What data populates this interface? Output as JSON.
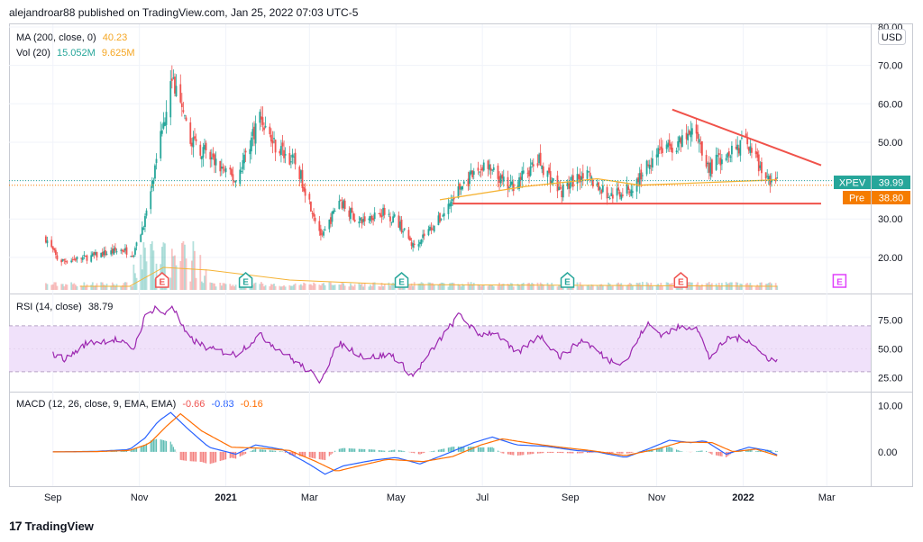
{
  "header": {
    "publisher": "alejandroar88 published on TradingView.com, Jan 25, 2022 07:03 UTC-5"
  },
  "footer": {
    "brand": "TradingView",
    "logo_icon": "tradingview-logo-icon"
  },
  "colors": {
    "up": "#26a69a",
    "down": "#ef5350",
    "ma": "#f5b335",
    "rsi": "#9c27b0",
    "rsi_band": "#f0e1fa",
    "macd": "#2962ff",
    "signal": "#ff6d00",
    "trendline": "#f0524a",
    "label_green": "#26a69a",
    "label_orange": "#f57c00"
  },
  "main_pane": {
    "legend": [
      {
        "label": "MA (200, close, 0)",
        "value": "40.23",
        "value2": "",
        "color": "#f5a623"
      },
      {
        "label": "Vol (20)",
        "value": "15.052M",
        "value2": "9.625M",
        "color": "#26a69a",
        "color2": "#f5a623"
      }
    ],
    "currency": "USD",
    "y_ticks": [
      "80.00",
      "70.00",
      "60.00",
      "50.00",
      "40.00",
      "30.00",
      "20.00"
    ],
    "symbol_label": "XPEV",
    "last_price": "39.99",
    "pre_label": "Pre",
    "pre_price": "38.80",
    "earnings_marker": "E"
  },
  "rsi_pane": {
    "legend": {
      "label": "RSI (14, close)",
      "value": "38.79",
      "color": "#9c27b0"
    },
    "y_ticks": [
      "75.00",
      "50.00",
      "25.00"
    ]
  },
  "macd_pane": {
    "legend": {
      "label": "MACD (12, 26, close, 9, EMA, EMA)",
      "v1": "-0.66",
      "v2": "-0.83",
      "v3": "-0.16"
    },
    "y_ticks": [
      "10.00",
      "0.00"
    ]
  },
  "x_axis": {
    "labels": [
      "Sep",
      "Nov",
      "2021",
      "Mar",
      "May",
      "Jul",
      "Sep",
      "Nov",
      "2022",
      "Mar"
    ]
  },
  "chart_data": [
    {
      "type": "candlestick",
      "title": "XPEV",
      "ylabel": "USD",
      "ylim": [
        12,
        80
      ],
      "x": [
        "2020-09",
        "2020-10",
        "2020-11",
        "2020-12",
        "2021-01",
        "2021-02",
        "2021-03",
        "2021-04",
        "2021-05",
        "2021-06",
        "2021-07",
        "2021-08",
        "2021-09",
        "2021-10",
        "2021-11",
        "2021-12",
        "2022-01"
      ],
      "close": [
        20,
        21,
        55,
        48,
        50,
        45,
        30,
        30,
        25,
        34,
        44,
        40,
        41,
        38,
        48,
        44,
        40
      ],
      "close_anchors": [
        [
          "2020-08-27",
          25
        ],
        [
          "2020-09-05",
          19
        ],
        [
          "2020-09-25",
          20
        ],
        [
          "2020-10-20",
          22
        ],
        [
          "2020-10-28",
          21
        ],
        [
          "2020-11-05",
          30
        ],
        [
          "2020-11-13",
          44
        ],
        [
          "2020-11-18",
          56
        ],
        [
          "2020-11-24",
          67
        ],
        [
          "2020-12-05",
          52
        ],
        [
          "2020-12-20",
          46
        ],
        [
          "2021-01-08",
          40
        ],
        [
          "2021-01-25",
          57
        ],
        [
          "2021-02-03",
          50
        ],
        [
          "2021-02-20",
          44
        ],
        [
          "2021-03-10",
          25
        ],
        [
          "2021-03-22",
          35
        ],
        [
          "2021-04-05",
          29
        ],
        [
          "2021-04-20",
          32
        ],
        [
          "2021-05-01",
          30
        ],
        [
          "2021-05-13",
          23
        ],
        [
          "2021-06-01",
          30
        ],
        [
          "2021-06-15",
          38
        ],
        [
          "2021-07-02",
          44
        ],
        [
          "2021-07-20",
          38
        ],
        [
          "2021-08-10",
          45
        ],
        [
          "2021-08-25",
          37
        ],
        [
          "2021-09-10",
          42
        ],
        [
          "2021-09-28",
          36
        ],
        [
          "2021-10-15",
          38
        ],
        [
          "2021-11-01",
          48
        ],
        [
          "2021-11-15",
          49
        ],
        [
          "2021-11-29",
          53
        ],
        [
          "2021-12-08",
          43
        ],
        [
          "2021-12-22",
          48
        ],
        [
          "2022-01-05",
          50
        ],
        [
          "2022-01-15",
          41
        ],
        [
          "2022-01-25",
          40
        ]
      ],
      "ma200": {
        "name": "MA (200, close, 0)",
        "points": [
          [
            "2021-06-01",
            35
          ],
          [
            "2021-08-01",
            38.5
          ],
          [
            "2021-09-20",
            40.5
          ],
          [
            "2021-10-20",
            38.8
          ],
          [
            "2022-01-25",
            40.2
          ]
        ]
      },
      "trendlines": [
        {
          "name": "resistance",
          "points": [
            [
              "2021-11-12",
              58.5
            ],
            [
              "2022-02-25",
              44
            ]
          ]
        },
        {
          "name": "support",
          "points": [
            [
              "2021-06-10",
              34
            ],
            [
              "2022-02-25",
              34
            ]
          ]
        }
      ],
      "earnings": [
        "2020-11-17",
        "2021-01-15",
        "2021-05-05",
        "2021-08-30",
        "2021-11-18",
        "2022-03-10"
      ],
      "volume_ma": "Vol (20)"
    },
    {
      "type": "line",
      "title": "RSI (14, close)",
      "ylim": [
        15,
        95
      ],
      "band": [
        30,
        70
      ],
      "anchors": [
        [
          "2020-09-01",
          45
        ],
        [
          "2020-09-10",
          41
        ],
        [
          "2020-09-25",
          55
        ],
        [
          "2020-10-15",
          58
        ],
        [
          "2020-10-28",
          50
        ],
        [
          "2020-11-05",
          78
        ],
        [
          "2020-11-13",
          87
        ],
        [
          "2020-11-18",
          79
        ],
        [
          "2020-11-24",
          88
        ],
        [
          "2020-12-05",
          60
        ],
        [
          "2020-12-20",
          50
        ],
        [
          "2021-01-08",
          45
        ],
        [
          "2021-01-25",
          62
        ],
        [
          "2021-02-10",
          47
        ],
        [
          "2021-03-01",
          30
        ],
        [
          "2021-03-08",
          22
        ],
        [
          "2021-03-22",
          55
        ],
        [
          "2021-04-10",
          42
        ],
        [
          "2021-04-28",
          45
        ],
        [
          "2021-05-13",
          26
        ],
        [
          "2021-06-01",
          58
        ],
        [
          "2021-06-15",
          80
        ],
        [
          "2021-06-28",
          62
        ],
        [
          "2021-07-10",
          65
        ],
        [
          "2021-07-25",
          45
        ],
        [
          "2021-08-10",
          62
        ],
        [
          "2021-08-25",
          43
        ],
        [
          "2021-09-10",
          58
        ],
        [
          "2021-09-28",
          40
        ],
        [
          "2021-10-10",
          38
        ],
        [
          "2021-10-25",
          72
        ],
        [
          "2021-11-05",
          62
        ],
        [
          "2021-11-15",
          68
        ],
        [
          "2021-11-29",
          70
        ],
        [
          "2021-12-08",
          42
        ],
        [
          "2021-12-22",
          60
        ],
        [
          "2022-01-05",
          58
        ],
        [
          "2022-01-15",
          44
        ],
        [
          "2022-01-25",
          38.79
        ]
      ]
    },
    {
      "type": "line",
      "title": "MACD (12, 26, close, 9, EMA, EMA)",
      "ylim": [
        -7,
        12
      ],
      "macd_anchors": [
        [
          "2020-09-01",
          0
        ],
        [
          "2020-10-01",
          0.1
        ],
        [
          "2020-10-25",
          0.5
        ],
        [
          "2020-11-05",
          3
        ],
        [
          "2020-11-14",
          6.5
        ],
        [
          "2020-11-23",
          8.5
        ],
        [
          "2020-12-05",
          5
        ],
        [
          "2020-12-20",
          1
        ],
        [
          "2021-01-08",
          -0.5
        ],
        [
          "2021-01-22",
          1.5
        ],
        [
          "2021-02-10",
          0.5
        ],
        [
          "2021-02-28",
          -2.5
        ],
        [
          "2021-03-12",
          -4.8
        ],
        [
          "2021-03-25",
          -3
        ],
        [
          "2021-04-15",
          -1.8
        ],
        [
          "2021-05-01",
          -1.2
        ],
        [
          "2021-05-18",
          -2.6
        ],
        [
          "2021-06-05",
          -0.5
        ],
        [
          "2021-06-25",
          2
        ],
        [
          "2021-07-08",
          3.2
        ],
        [
          "2021-07-25",
          1.5
        ],
        [
          "2021-08-15",
          1.2
        ],
        [
          "2021-09-05",
          0.3
        ],
        [
          "2021-09-20",
          0
        ],
        [
          "2021-10-10",
          -1.2
        ],
        [
          "2021-10-25",
          0.5
        ],
        [
          "2021-11-10",
          2.5
        ],
        [
          "2021-11-25",
          2
        ],
        [
          "2021-12-05",
          2.4
        ],
        [
          "2021-12-20",
          -0.5
        ],
        [
          "2022-01-05",
          1
        ],
        [
          "2022-01-18",
          0.3
        ],
        [
          "2022-01-25",
          -0.66
        ]
      ],
      "signal_anchors": [
        [
          "2020-09-01",
          0
        ],
        [
          "2020-10-01",
          0.05
        ],
        [
          "2020-10-25",
          0.3
        ],
        [
          "2020-11-08",
          1.8
        ],
        [
          "2020-11-20",
          5.5
        ],
        [
          "2020-11-30",
          8.2
        ],
        [
          "2020-12-15",
          4.5
        ],
        [
          "2021-01-05",
          1
        ],
        [
          "2021-01-25",
          0.8
        ],
        [
          "2021-02-15",
          0.3
        ],
        [
          "2021-03-05",
          -2
        ],
        [
          "2021-03-20",
          -4.2
        ],
        [
          "2021-04-05",
          -3
        ],
        [
          "2021-04-25",
          -1.6
        ],
        [
          "2021-05-20",
          -2.1
        ],
        [
          "2021-06-10",
          -1
        ],
        [
          "2021-06-30",
          1.5
        ],
        [
          "2021-07-15",
          2.8
        ],
        [
          "2021-08-05",
          1.8
        ],
        [
          "2021-08-25",
          1
        ],
        [
          "2021-09-15",
          0.3
        ],
        [
          "2021-10-10",
          -0.8
        ],
        [
          "2021-11-01",
          0.6
        ],
        [
          "2021-11-18",
          2.1
        ],
        [
          "2021-12-10",
          2
        ],
        [
          "2021-12-25",
          0
        ],
        [
          "2022-01-10",
          0.6
        ],
        [
          "2022-01-25",
          -0.83
        ]
      ],
      "histogram": "MACD - Signal"
    }
  ]
}
